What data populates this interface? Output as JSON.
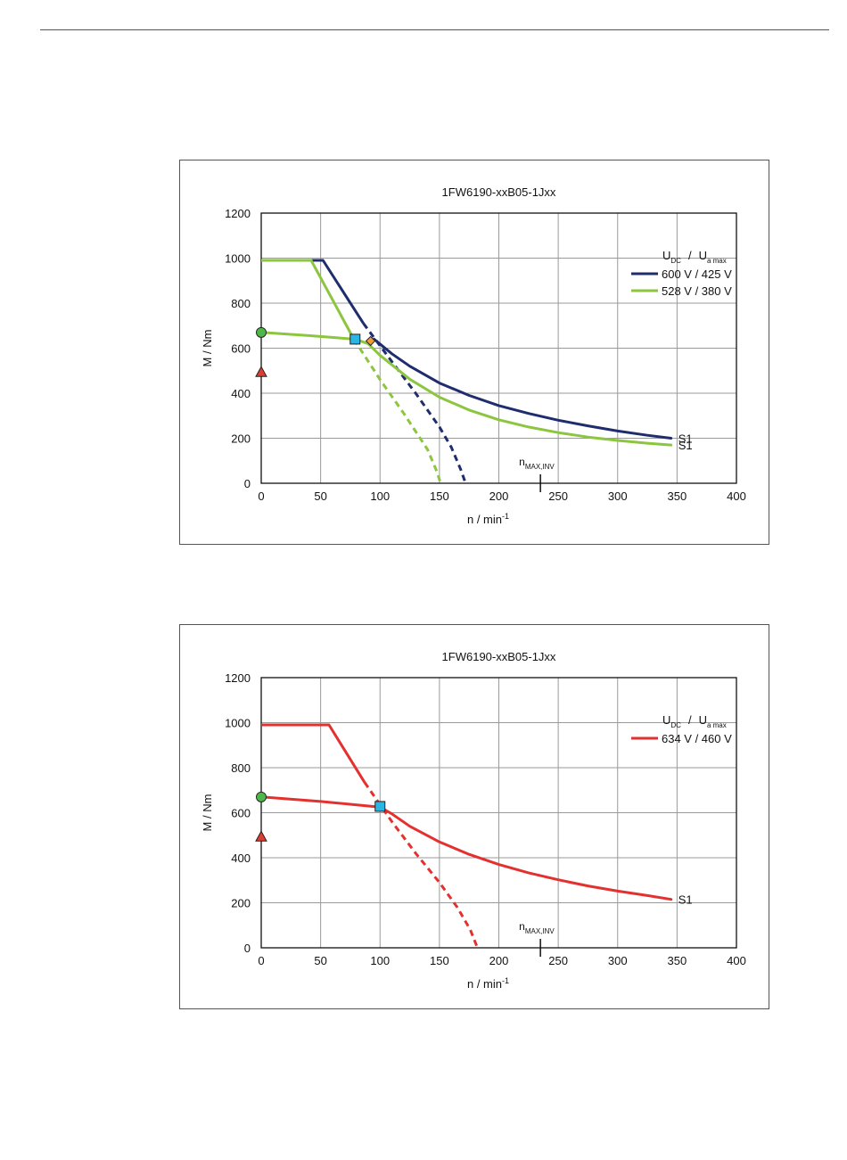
{
  "colors": {
    "navy": "#1f2d6e",
    "green": "#8cc63f",
    "red": "#e3312f",
    "cyan": "#2bb5e3",
    "orange": "#f39a37",
    "marker_green": "#4db848",
    "marker_red": "#e03c31",
    "grid": "#9a9a9a"
  },
  "chart_data": [
    {
      "type": "line",
      "title": "1FW6190-xxB05-1Jxx",
      "xlabel": "n / min",
      "xlabel_sup": "-1",
      "ylabel": "M / Nm",
      "xlim": [
        0,
        400
      ],
      "ylim": [
        0,
        1200
      ],
      "xticks": [
        0,
        50,
        100,
        150,
        200,
        250,
        300,
        350,
        400
      ],
      "yticks": [
        0,
        200,
        400,
        600,
        800,
        1000,
        1200
      ],
      "grid": true,
      "legend_placement": "top-right",
      "legend_header": {
        "u1": "U",
        "u1_sub": "DC",
        "sep": "/",
        "u2": "U",
        "u2_sub": "a max"
      },
      "series": [
        {
          "name": "600 V / 425 V",
          "color": "navy",
          "peak": [
            [
              0,
              990
            ],
            [
              52,
              990
            ],
            [
              86,
              710
            ]
          ],
          "peak_dashed": [
            [
              86,
              710
            ],
            [
              110,
              540
            ],
            [
              130,
              400
            ],
            [
              150,
              250
            ],
            [
              160,
              160
            ],
            [
              168,
              60
            ],
            [
              172,
              0
            ]
          ],
          "s1": [
            [
              95,
              640
            ],
            [
              110,
              575
            ],
            [
              125,
              520
            ],
            [
              150,
              445
            ],
            [
              175,
              390
            ],
            [
              200,
              345
            ],
            [
              225,
              310
            ],
            [
              250,
              280
            ],
            [
              275,
              255
            ],
            [
              300,
              232
            ],
            [
              325,
              213
            ],
            [
              345,
              200
            ]
          ],
          "s1_label": "S1"
        },
        {
          "name": "528 V / 380 V",
          "color": "green",
          "peak": [
            [
              0,
              990
            ],
            [
              42,
              990
            ],
            [
              78,
              640
            ]
          ],
          "peak_dashed": [
            [
              78,
              640
            ],
            [
              100,
              460
            ],
            [
              120,
              310
            ],
            [
              140,
              150
            ],
            [
              148,
              50
            ],
            [
              151,
              0
            ]
          ],
          "s1": [
            [
              0,
              670
            ],
            [
              40,
              656
            ],
            [
              79,
              640
            ],
            [
              90,
              620
            ],
            [
              100,
              568
            ],
            [
              125,
              462
            ],
            [
              150,
              382
            ],
            [
              175,
              325
            ],
            [
              200,
              282
            ],
            [
              225,
              250
            ],
            [
              250,
              225
            ],
            [
              275,
              205
            ],
            [
              300,
              190
            ],
            [
              325,
              178
            ],
            [
              345,
              170
            ]
          ],
          "s1_label": "S1"
        }
      ],
      "n_max": {
        "x": 235,
        "label": "n",
        "label_sub": "MAX,INV"
      },
      "markers": [
        {
          "shape": "circle",
          "color": "marker_green",
          "x": 0,
          "y": 670
        },
        {
          "shape": "triangle",
          "color": "marker_red",
          "x": 0,
          "y": 490
        },
        {
          "shape": "square",
          "color": "cyan",
          "x": 79,
          "y": 640
        },
        {
          "shape": "diamond",
          "color": "orange",
          "x": 92,
          "y": 632
        }
      ]
    },
    {
      "type": "line",
      "title": "1FW6190-xxB05-1Jxx",
      "xlabel": "n / min",
      "xlabel_sup": "-1",
      "ylabel": "M / Nm",
      "xlim": [
        0,
        400
      ],
      "ylim": [
        0,
        1200
      ],
      "xticks": [
        0,
        50,
        100,
        150,
        200,
        250,
        300,
        350,
        400
      ],
      "yticks": [
        0,
        200,
        400,
        600,
        800,
        1000,
        1200
      ],
      "grid": true,
      "legend_placement": "top-right",
      "legend_header": {
        "u1": "U",
        "u1_sub": "DC",
        "sep": "/",
        "u2": "U",
        "u2_sub": "a max"
      },
      "series": [
        {
          "name": "634 V / 460 V",
          "color": "red",
          "peak": [
            [
              0,
              990
            ],
            [
              57,
              990
            ],
            [
              87,
              735
            ]
          ],
          "peak_dashed": [
            [
              87,
              735
            ],
            [
              110,
              560
            ],
            [
              130,
              420
            ],
            [
              150,
              290
            ],
            [
              165,
              180
            ],
            [
              176,
              80
            ],
            [
              182,
              0
            ]
          ],
          "s1": [
            [
              0,
              670
            ],
            [
              50,
              650
            ],
            [
              100,
              625
            ],
            [
              110,
              595
            ],
            [
              125,
              540
            ],
            [
              150,
              470
            ],
            [
              175,
              415
            ],
            [
              200,
              370
            ],
            [
              225,
              333
            ],
            [
              250,
              302
            ],
            [
              275,
              275
            ],
            [
              300,
              252
            ],
            [
              325,
              232
            ],
            [
              345,
              215
            ]
          ],
          "s1_label": "S1"
        }
      ],
      "n_max": {
        "x": 235,
        "label": "n",
        "label_sub": "MAX,INV"
      },
      "markers": [
        {
          "shape": "circle",
          "color": "marker_green",
          "x": 0,
          "y": 670
        },
        {
          "shape": "triangle",
          "color": "marker_red",
          "x": 0,
          "y": 490
        },
        {
          "shape": "square",
          "color": "cyan",
          "x": 100,
          "y": 628
        }
      ]
    }
  ]
}
